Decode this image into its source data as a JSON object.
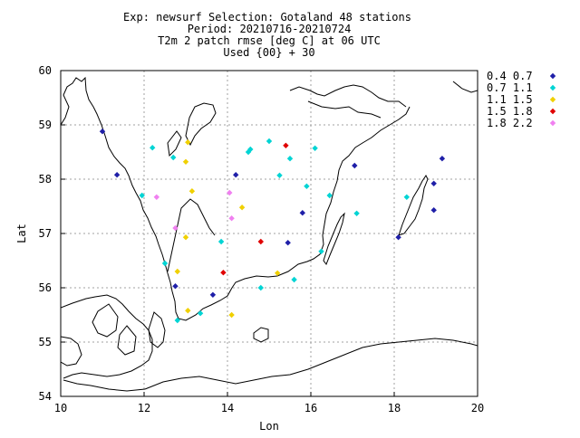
{
  "chart_data": {
    "type": "scatter",
    "title_lines": [
      "Exp: newsurf   Selection: Gotaland     48 stations",
      "Period: 20210716-20210724",
      "T2m 2 patch rmse [deg C] at  06 UTC",
      "Used {00} + 30"
    ],
    "xlabel": "Lon",
    "ylabel": "Lat",
    "xlim": [
      10,
      20
    ],
    "ylim": [
      54,
      60
    ],
    "xticks": [
      10,
      12,
      14,
      16,
      18,
      20
    ],
    "yticks": [
      54,
      55,
      56,
      57,
      58,
      59,
      60
    ],
    "grid": true,
    "legend_position": "right",
    "series": [
      {
        "name": "0.4 0.7",
        "color": "#1f1fa8",
        "points": [
          [
            11.0,
            58.88
          ],
          [
            11.35,
            58.08
          ],
          [
            14.2,
            58.08
          ],
          [
            17.05,
            58.25
          ],
          [
            19.15,
            58.38
          ],
          [
            18.95,
            57.92
          ],
          [
            18.95,
            57.43
          ],
          [
            18.1,
            56.93
          ],
          [
            15.8,
            57.38
          ],
          [
            15.45,
            56.83
          ],
          [
            12.75,
            56.03
          ],
          [
            13.65,
            55.87
          ]
        ]
      },
      {
        "name": "0.7 1.1",
        "color": "#00d4d4",
        "points": [
          [
            12.2,
            58.58
          ],
          [
            12.7,
            58.4
          ],
          [
            14.5,
            58.5
          ],
          [
            14.55,
            58.55
          ],
          [
            15.0,
            58.7
          ],
          [
            15.5,
            58.38
          ],
          [
            16.1,
            58.57
          ],
          [
            15.25,
            58.07
          ],
          [
            15.9,
            57.87
          ],
          [
            16.45,
            57.7
          ],
          [
            17.1,
            57.37
          ],
          [
            18.3,
            57.67
          ],
          [
            11.95,
            57.7
          ],
          [
            16.25,
            56.67
          ],
          [
            13.85,
            56.85
          ],
          [
            12.5,
            56.45
          ],
          [
            14.8,
            56.0
          ],
          [
            15.6,
            56.15
          ],
          [
            13.35,
            55.53
          ],
          [
            12.8,
            55.4
          ]
        ]
      },
      {
        "name": "1.1 1.5",
        "color": "#f0d000",
        "points": [
          [
            13.05,
            58.68
          ],
          [
            13.0,
            58.32
          ],
          [
            13.15,
            57.78
          ],
          [
            14.35,
            57.48
          ],
          [
            13.0,
            56.93
          ],
          [
            12.8,
            56.3
          ],
          [
            15.2,
            56.27
          ],
          [
            13.05,
            55.58
          ],
          [
            14.1,
            55.5
          ]
        ]
      },
      {
        "name": "1.5 1.8",
        "color": "#e00000",
        "points": [
          [
            15.4,
            58.62
          ],
          [
            14.8,
            56.85
          ],
          [
            13.9,
            56.28
          ]
        ]
      },
      {
        "name": "1.8 2.2",
        "color": "#f080f0",
        "points": [
          [
            12.3,
            57.67
          ],
          [
            14.05,
            57.75
          ],
          [
            14.1,
            57.28
          ],
          [
            12.75,
            57.1
          ]
        ]
      }
    ]
  }
}
